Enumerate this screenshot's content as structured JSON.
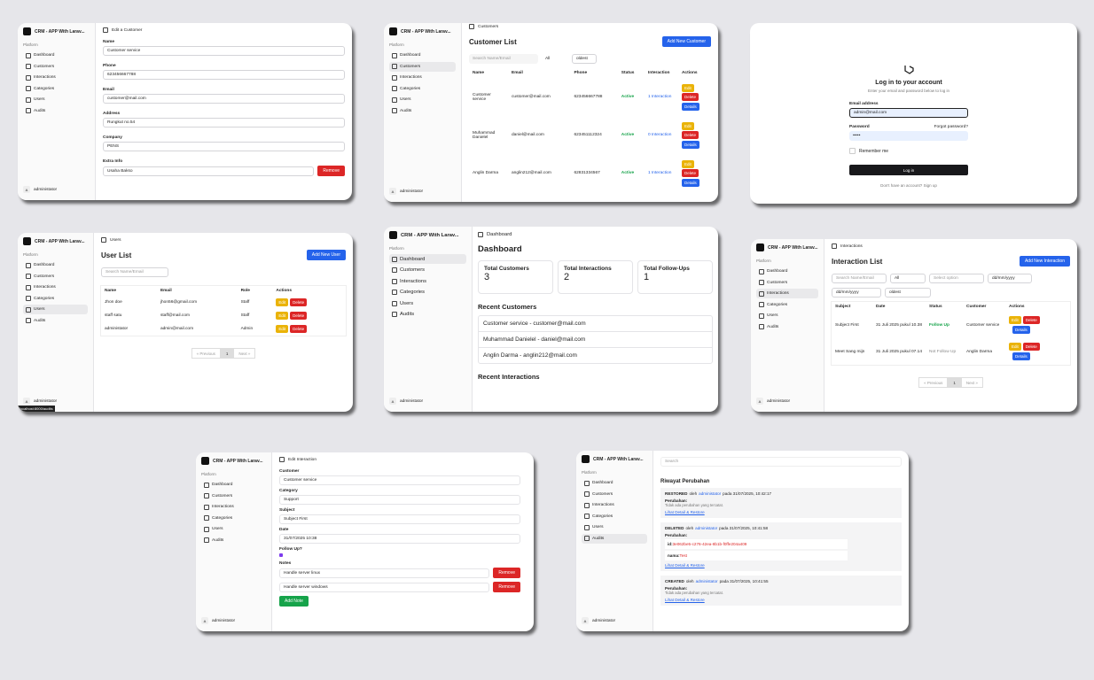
{
  "sidebar": {
    "app": "CRM - APP With Larav...",
    "section": "Platform",
    "nav": [
      "Dashboard",
      "Customers",
      "Interactions",
      "Categories",
      "Users",
      "Audits"
    ],
    "user_initial": "A",
    "user": "administator"
  },
  "edit_customer": {
    "breadcrumb": "Edit a Customer",
    "fields": [
      {
        "label": "Name",
        "value": "Customer service"
      },
      {
        "label": "Phone",
        "value": "623456667788"
      },
      {
        "label": "Email",
        "value": "customer@mail.com"
      },
      {
        "label": "Address",
        "value": "Rungkut no.54"
      },
      {
        "label": "Company",
        "value": "PENS"
      }
    ],
    "extra_label": "Extra Info",
    "extra_value": "Usaha Bakso",
    "remove": "Remove"
  },
  "customer_list": {
    "breadcrumb": "Customers",
    "title": "Customer List",
    "add": "Add New Customer",
    "search": "Search Name/Email",
    "filter": "All",
    "sort": "oldest",
    "columns": [
      "Name",
      "Email",
      "Phone",
      "Status",
      "Interaction",
      "Actions"
    ],
    "rows": [
      [
        "Customer service",
        "customer@mail.com",
        "623456667788",
        "Active",
        "1 Interaction"
      ],
      [
        "Muhammad Danielel",
        "daniel@mail.com",
        "623451112324",
        "Active",
        "0 Interaction"
      ],
      [
        "Anglin Darma",
        "anglin212@mail.com",
        "62831334567",
        "Active",
        "1 Interaction"
      ]
    ],
    "actions": [
      "Edit",
      "Delete",
      "Details"
    ]
  },
  "login": {
    "title": "Log in to your account",
    "subtitle": "Enter your email and password below to log in",
    "email_label": "Email address",
    "email": "admin@mail.com",
    "password_label": "Password",
    "forgot": "Forgot password?",
    "password": "•••••",
    "remember": "Remember me",
    "button": "Log in",
    "footer": "Don't have an account? Sign up"
  },
  "user_list": {
    "breadcrumb": "Users",
    "title": "User List",
    "add": "Add New User",
    "search": "Search Name/Email",
    "columns": [
      "Name",
      "Email",
      "Role",
      "Actions"
    ],
    "rows": [
      [
        "Jhon doe",
        "jhon56@gmail.com",
        "Staff"
      ],
      [
        "staff satu",
        "staff@mail.com",
        "Staff"
      ],
      [
        "administator",
        "admin@mail.com",
        "Admin"
      ]
    ],
    "actions": [
      "Edit",
      "Delete"
    ],
    "pager": [
      "« Previous",
      "1",
      "Next »"
    ],
    "status_url": "localhost:8000/audits"
  },
  "dashboard": {
    "breadcrumb": "Dashboard",
    "title": "Dashboard",
    "stats": [
      {
        "label": "Total Customers",
        "value": "3"
      },
      {
        "label": "Total Interactions",
        "value": "2"
      },
      {
        "label": "Total Follow-Ups",
        "value": "1"
      }
    ],
    "recent_customers": "Recent Customers",
    "customers": [
      "Customer service - customer@mail.com",
      "Muhammad Danielel - daniel@mail.com",
      "Anglin Darma - anglin212@mail.com"
    ],
    "recent_interactions": "Recent Interactions"
  },
  "interaction_list": {
    "breadcrumb": "Interactions",
    "title": "Interaction List",
    "add": "Add New Interaction",
    "search": "Search Name/Email",
    "filter": "All",
    "select": "Select option",
    "date_from": "dd/mm/yyyy",
    "date_to": "dd/mm/yyyy",
    "sort": "oldest",
    "columns": [
      "Subject",
      "Date",
      "Status",
      "Customer",
      "Actions"
    ],
    "rows": [
      [
        "Subject First",
        "31 Juli 2025 pukul 10.38",
        "Follow Up",
        "Customer service"
      ],
      [
        "Meet Sang mijn",
        "31 Juli 2025 pukul 07.14",
        "Not Follow Up",
        "Anglin Darma"
      ]
    ],
    "actions": [
      "Edit",
      "Delete",
      "Details"
    ],
    "pager": [
      "« Previous",
      "1",
      "Next »"
    ]
  },
  "edit_interaction": {
    "breadcrumb": "Edit Interaction",
    "fields": [
      {
        "label": "Customer",
        "value": "Customer service"
      },
      {
        "label": "Category",
        "value": "Support"
      },
      {
        "label": "Subject",
        "value": "Subject First"
      },
      {
        "label": "Date",
        "value": "31/07/2025 10:38"
      }
    ],
    "follow_label": "Follow Up?",
    "notes_label": "Notes",
    "notes": [
      "Handle server linux",
      "Handle server windows"
    ],
    "remove": "Remove",
    "add": "Add Note"
  },
  "audits": {
    "search": "Search",
    "title": "Riwayat Perubahan",
    "entries": [
      {
        "action": "RESTORED",
        "by": "oleh",
        "user": "administator",
        "when": "pada 31/07/2025, 10:42:17",
        "changes_label": "Perubahan:",
        "note": "Tidak ada perubahan yang tercatat.",
        "link": "Lihat Detail & Restore"
      },
      {
        "action": "DELETED",
        "by": "oleh",
        "user": "administator",
        "when": "pada 31/07/2025, 10:41:58",
        "changes_label": "Perubahan:",
        "diff": [
          {
            "key": "id:",
            "value": "3e062be5-c276-42ea-8b1b-f0ffe204a409"
          },
          {
            "key": "nama:",
            "value": "Test"
          }
        ],
        "link": "Lihat Detail & Restore"
      },
      {
        "action": "CREATED",
        "by": "oleh",
        "user": "administator",
        "when": "pada 31/07/2025, 10:41:55",
        "changes_label": "Perubahan:",
        "note": "Tidak ada perubahan yang tercatat.",
        "link": "Lihat Detail & Restore"
      }
    ]
  }
}
